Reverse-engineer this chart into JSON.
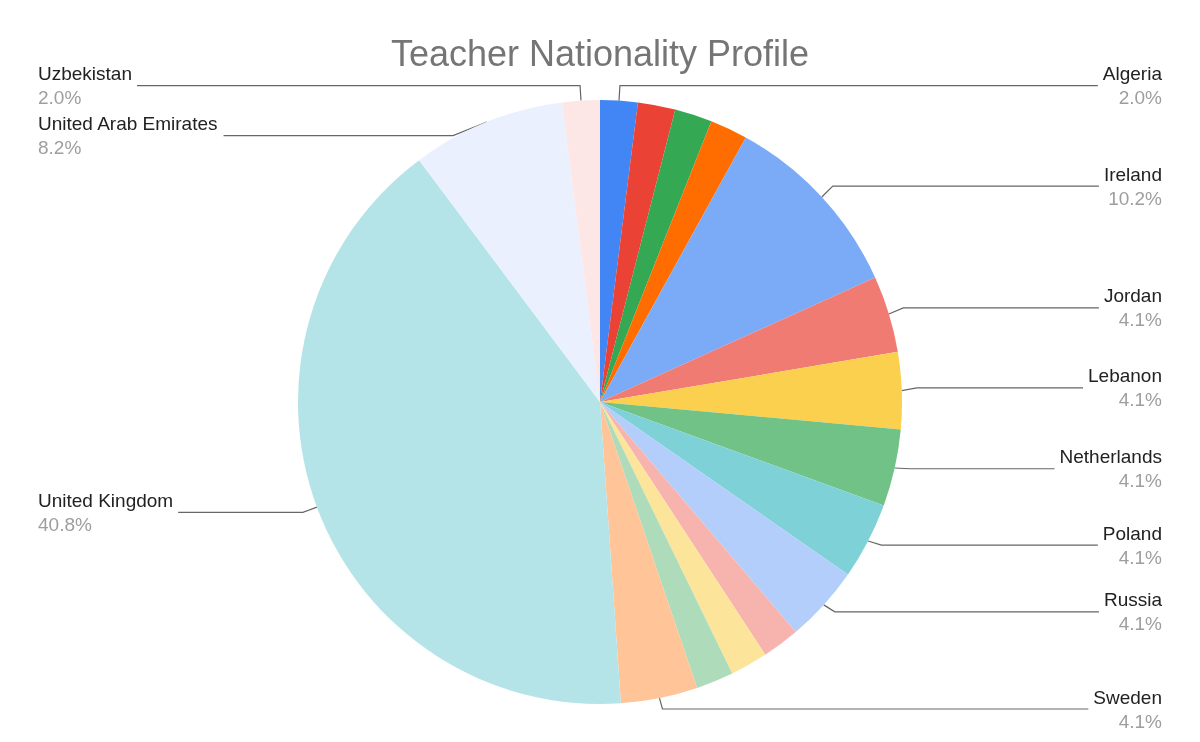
{
  "chart_data": {
    "type": "pie",
    "title": "Teacher Nationality Profile",
    "categories": [
      "Algeria",
      null,
      null,
      null,
      "Ireland",
      "Jordan",
      "Lebanon",
      "Netherlands",
      "Poland",
      "Russia",
      null,
      null,
      null,
      "Sweden",
      "United Kingdom",
      "United Arab Emirates",
      "Uzbekistan"
    ],
    "values": [
      2.0,
      2.0,
      2.0,
      2.0,
      10.2,
      4.1,
      4.1,
      4.1,
      4.1,
      4.1,
      2.0,
      2.0,
      2.0,
      4.1,
      40.8,
      8.2,
      2.0
    ],
    "value_labels": [
      "2.0%",
      null,
      null,
      null,
      "10.2%",
      "4.1%",
      "4.1%",
      "4.1%",
      "4.1%",
      "4.1%",
      null,
      null,
      null,
      "4.1%",
      "40.8%",
      "8.2%",
      "2.0%"
    ],
    "colors": [
      "#4285f4",
      "#ea4335",
      "#34a853",
      "#ff6d01",
      "#7baaf7",
      "#f07b72",
      "#fcd04f",
      "#71c287",
      "#7ed1d7",
      "#b3cefb",
      "#f7b4ae",
      "#fde49b",
      "#aedcba",
      "#ffc599",
      "#b5e4e8",
      "#eaf0fd",
      "#fde6e6"
    ],
    "legend": false
  }
}
